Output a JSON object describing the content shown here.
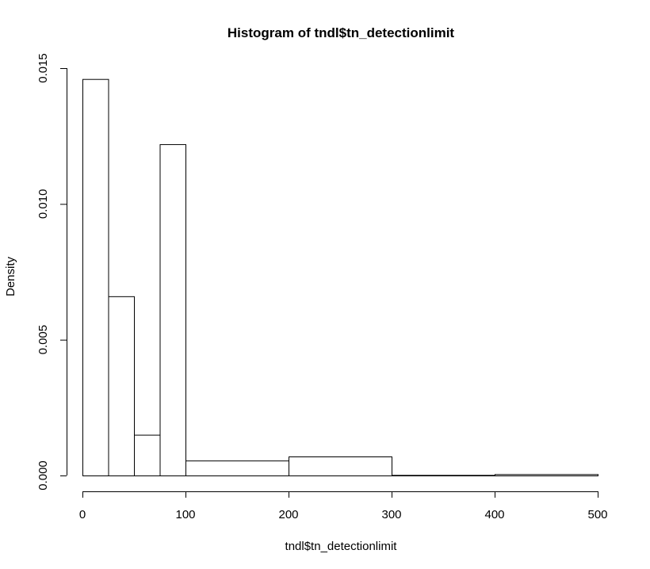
{
  "chart_data": {
    "type": "histogram",
    "title": "Histogram of tndl$tn_detectionlimit",
    "xlabel": "tndl$tn_detectionlimit",
    "ylabel": "Density",
    "xlim": [
      0,
      500
    ],
    "ylim": [
      0,
      0.015
    ],
    "x_ticks": [
      0,
      100,
      200,
      300,
      400,
      500
    ],
    "x_tick_labels": [
      "0",
      "100",
      "200",
      "300",
      "400",
      "500"
    ],
    "y_ticks": [
      0,
      0.005,
      0.01,
      0.015
    ],
    "y_tick_labels": [
      "0.000",
      "0.005",
      "0.010",
      "0.015"
    ],
    "bins": [
      {
        "start": 0,
        "end": 25,
        "density": 0.0146
      },
      {
        "start": 25,
        "end": 50,
        "density": 0.0066
      },
      {
        "start": 50,
        "end": 75,
        "density": 0.0015
      },
      {
        "start": 75,
        "end": 100,
        "density": 0.0122
      },
      {
        "start": 100,
        "end": 200,
        "density": 0.00055
      },
      {
        "start": 200,
        "end": 300,
        "density": 0.0007
      },
      {
        "start": 300,
        "end": 400,
        "density": 2e-05
      },
      {
        "start": 400,
        "end": 500,
        "density": 5e-05
      }
    ],
    "grid": false,
    "legend": "none",
    "bar_fill": "#ffffff",
    "bar_stroke": "#000000"
  }
}
